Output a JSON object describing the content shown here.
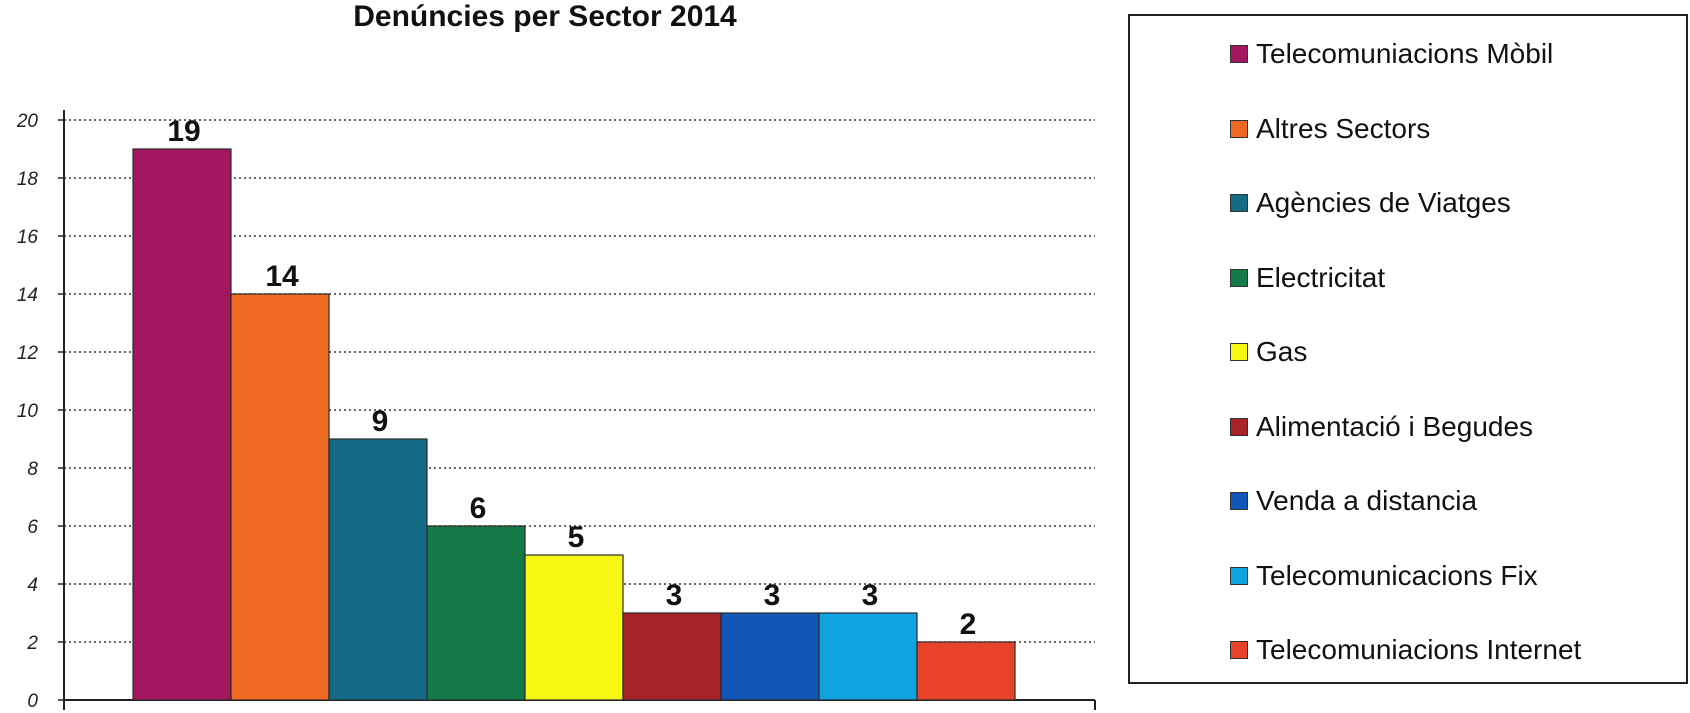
{
  "chart_data": {
    "type": "bar",
    "title": "Denúncies per Sector 2014",
    "categories": [
      "Telecomuniacions Mòbil",
      "Altres Sectors",
      "Agències de Viatges",
      "Electricitat",
      "Gas",
      "Alimentació i Begudes",
      "Venda a distancia",
      "Telecomunicacions Fix",
      "Telecomuniacions Internet"
    ],
    "values": [
      19,
      14,
      9,
      6,
      5,
      3,
      3,
      3,
      2
    ],
    "data_labels": [
      "19",
      "14",
      "9",
      "6",
      "5",
      "3",
      "3",
      "3",
      "2"
    ],
    "colors": [
      "#a3175e",
      "#ee6a23",
      "#146b86",
      "#137a48",
      "#f7f714",
      "#a8222a",
      "#1257b8",
      "#0fa4e0",
      "#e8422b"
    ],
    "ylim": [
      0,
      20
    ],
    "yticks": [
      0,
      2,
      4,
      6,
      8,
      10,
      12,
      14,
      16,
      18,
      20
    ],
    "ytick_labels": [
      "0",
      "2",
      "4",
      "6",
      "8",
      "10",
      "12",
      "14",
      "16",
      "18",
      "20"
    ],
    "grid": true,
    "grid_style": "dotted",
    "legend_position": "right",
    "xlabel": "",
    "ylabel": ""
  }
}
